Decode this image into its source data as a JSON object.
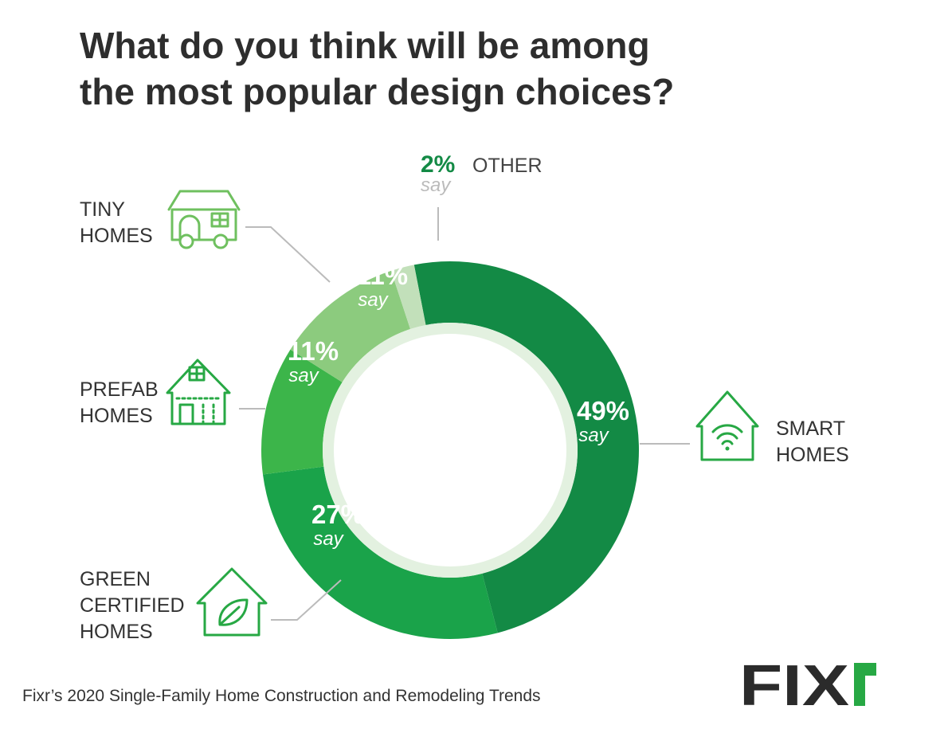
{
  "title_line1": "What do you think will be among",
  "title_line2": "the most popular design choices?",
  "footer": "Fixr’s 2020 Single-Family Home Construction and Remodeling Trends",
  "logo": "FIXR",
  "colors": {
    "smart": "#138a45",
    "green": "#1aa34a",
    "prefab": "#3cb54a",
    "tiny": "#8ccb7e",
    "other": "#c2e0ba",
    "inner_ring": "#e3f1e0",
    "icon": "#27a844",
    "icon_tiny": "#6fc05f",
    "leader": "#bbbbbb",
    "label": "#333333",
    "logo_dark": "#2b2b2b",
    "logo_green": "#27a844"
  },
  "chart_data": {
    "type": "pie",
    "title": "What do you think will be among the most popular design choices?",
    "unit": "%",
    "start_angle_deg": -11,
    "slices": [
      {
        "label": "SMART HOMES",
        "label_lines": [
          "SMART",
          "HOMES"
        ],
        "value": 49,
        "value_label": "49%",
        "say": "say",
        "icon": "wifi-house-icon"
      },
      {
        "label": "GREEN CERTIFIED HOMES",
        "label_lines": [
          "GREEN",
          "CERTIFIED",
          "HOMES"
        ],
        "value": 27,
        "value_label": "27%",
        "say": "say",
        "icon": "leaf-house-icon"
      },
      {
        "label": "PREFAB HOMES",
        "label_lines": [
          "PREFAB",
          "HOMES"
        ],
        "value": 11,
        "value_label": "11%",
        "say": "say",
        "icon": "prefab-house-icon"
      },
      {
        "label": "TINY HOMES",
        "label_lines": [
          "TINY",
          "HOMES"
        ],
        "value": 11,
        "value_label": "11%",
        "say": "say",
        "icon": "tiny-home-icon"
      },
      {
        "label": "OTHER",
        "label_lines": [
          "OTHER"
        ],
        "value": 2,
        "value_label": "2%",
        "say": "say",
        "icon": ""
      }
    ]
  }
}
